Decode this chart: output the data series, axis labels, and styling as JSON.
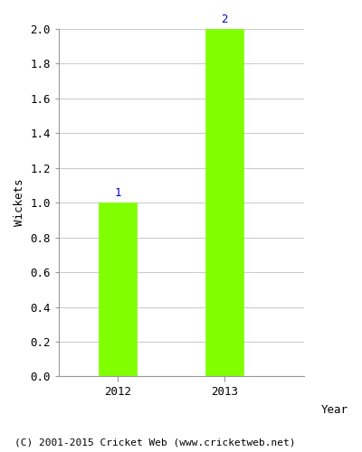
{
  "categories": [
    "2012",
    "2013"
  ],
  "values": [
    1,
    2
  ],
  "bar_color": "#80FF00",
  "bar_edge_color": "#80FF00",
  "ylabel": "Wickets",
  "xlabel": "Year",
  "ylim": [
    0,
    2.0
  ],
  "yticks": [
    0.0,
    0.2,
    0.4,
    0.6,
    0.8,
    1.0,
    1.2,
    1.4,
    1.6,
    1.8,
    2.0
  ],
  "annotation_color": "#0000CC",
  "annotation_fontsize": 9,
  "axis_label_fontsize": 9,
  "tick_fontsize": 9,
  "grid_color": "#cccccc",
  "background_color": "#ffffff",
  "footer_text": "(C) 2001-2015 Cricket Web (www.cricketweb.net)",
  "footer_fontsize": 8,
  "bar_width": 0.35
}
